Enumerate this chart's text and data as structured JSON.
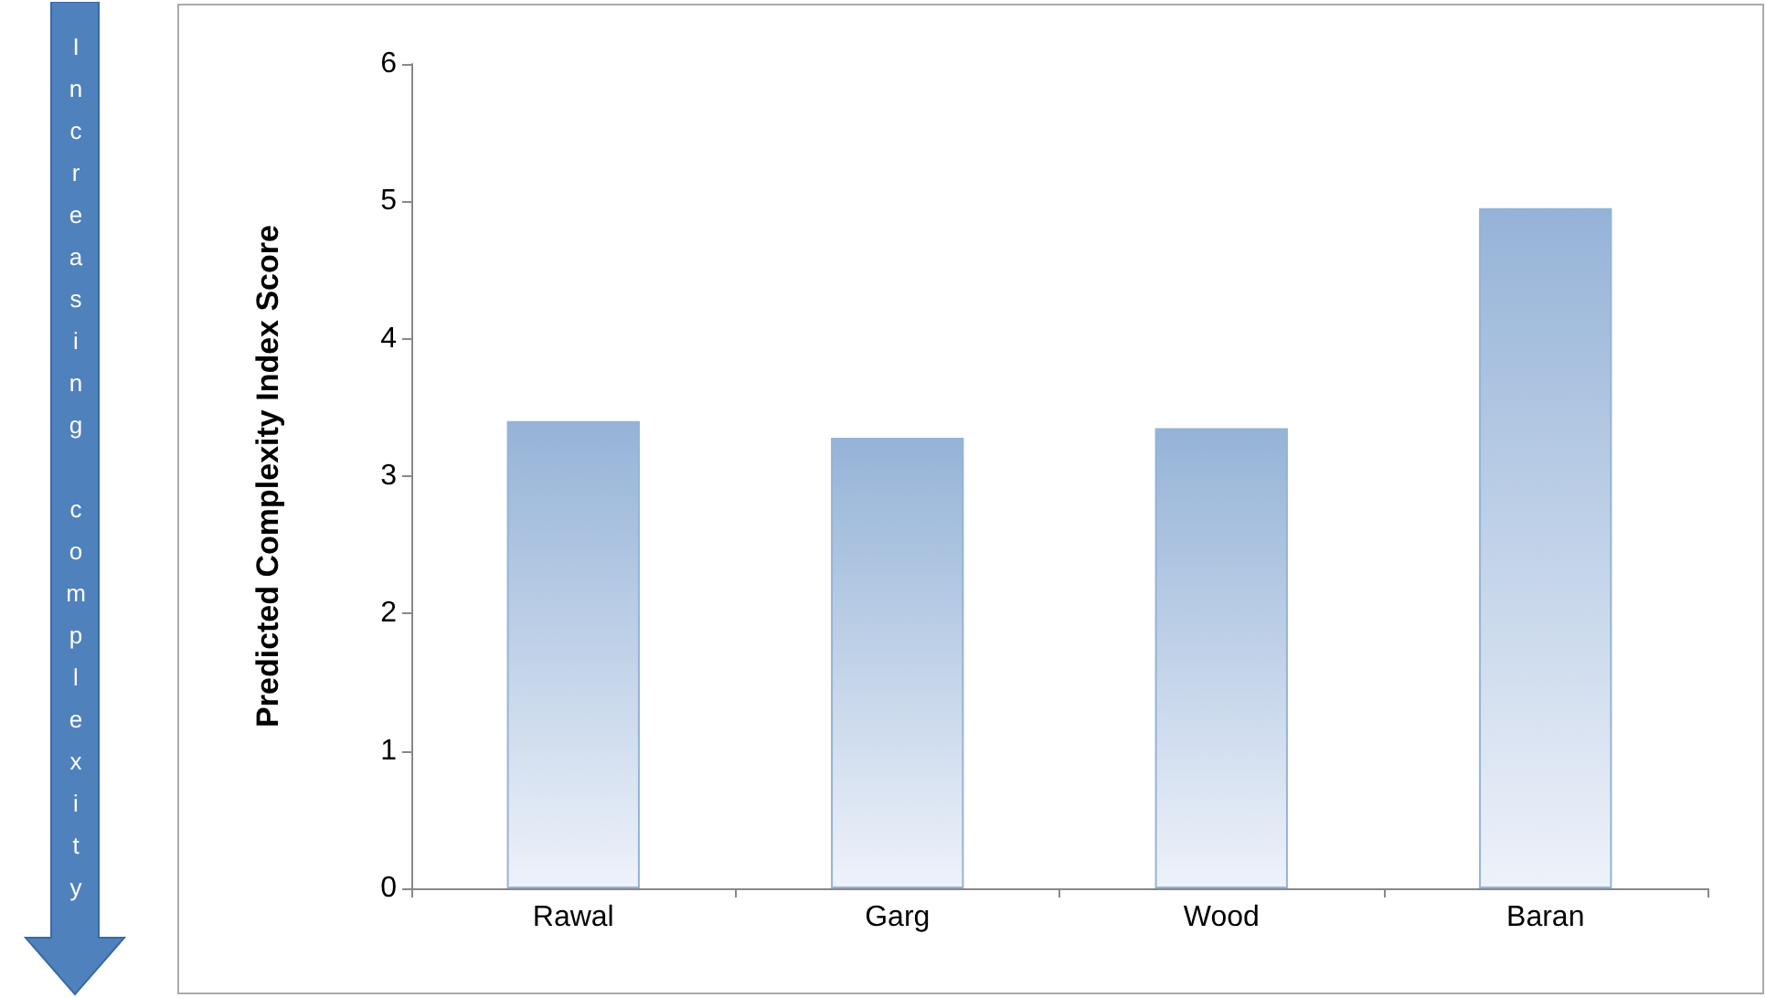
{
  "chart_data": {
    "type": "bar",
    "ylabel": "Predicted Complexity Index Score",
    "categories": [
      "Rawal",
      "Garg",
      "Wood",
      "Baran"
    ],
    "values": [
      3.4,
      3.28,
      3.35,
      4.95
    ],
    "color": "#95b3d7",
    "ylim": [
      0,
      6
    ],
    "yticks": [
      0,
      1,
      2,
      3,
      4,
      5,
      6
    ],
    "grid": false,
    "annotations": [
      "Increasing complexity"
    ]
  }
}
